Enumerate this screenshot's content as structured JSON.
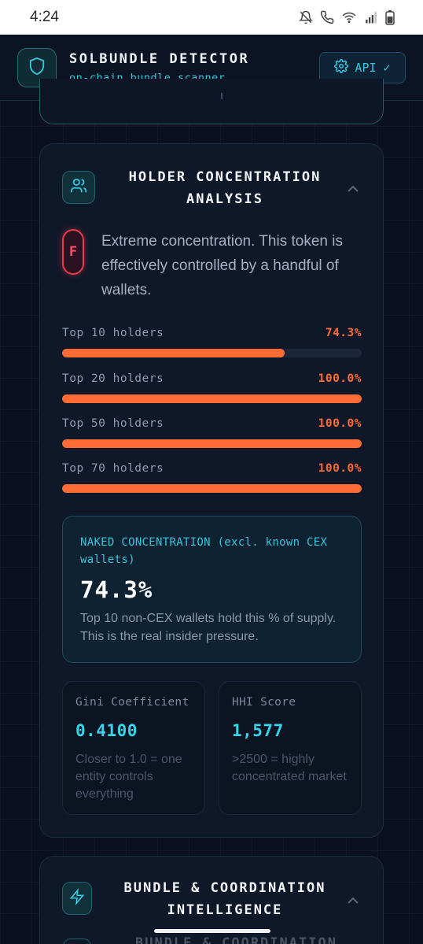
{
  "status_bar": {
    "time": "4:24"
  },
  "header": {
    "title": "SOLBUNDLE DETECTOR",
    "subtitle": "on-chain bundle scanner",
    "api_label": "API ✓"
  },
  "holder_card": {
    "title_line1": "HOLDER CONCENTRATION",
    "title_line2": "ANALYSIS",
    "grade": "F",
    "grade_color": "#e8394a",
    "grade_text": "Extreme concentration. This token is effectively controlled by a handful of wallets.",
    "bar_color": "#ff6b35",
    "holders": [
      {
        "label": "Top 10 holders",
        "pct": "74.3%",
        "fraction": 0.743
      },
      {
        "label": "Top 20 holders",
        "pct": "100.0%",
        "fraction": 1.0
      },
      {
        "label": "Top 50 holders",
        "pct": "100.0%",
        "fraction": 1.0
      },
      {
        "label": "Top 70 holders",
        "pct": "100.0%",
        "fraction": 1.0
      }
    ],
    "naked": {
      "label": "NAKED CONCENTRATION (excl. known CEX wallets)",
      "value": "74.3%",
      "description": "Top 10 non-CEX wallets hold this % of supply. This is the real insider pressure."
    },
    "gini": {
      "label": "Gini Coefficient",
      "value": "0.4100",
      "description": "Closer to 1.0 = one entity controls everything"
    },
    "hhi": {
      "label": "HHI Score",
      "value": "1,577",
      "description": ">2500 = highly concentrated market"
    }
  },
  "next_card": {
    "title_line1": "BUNDLE & COORDINATION",
    "title_line2": "INTELLIGENCE",
    "ghost_title": "BUNDLE & COORDINATION"
  }
}
